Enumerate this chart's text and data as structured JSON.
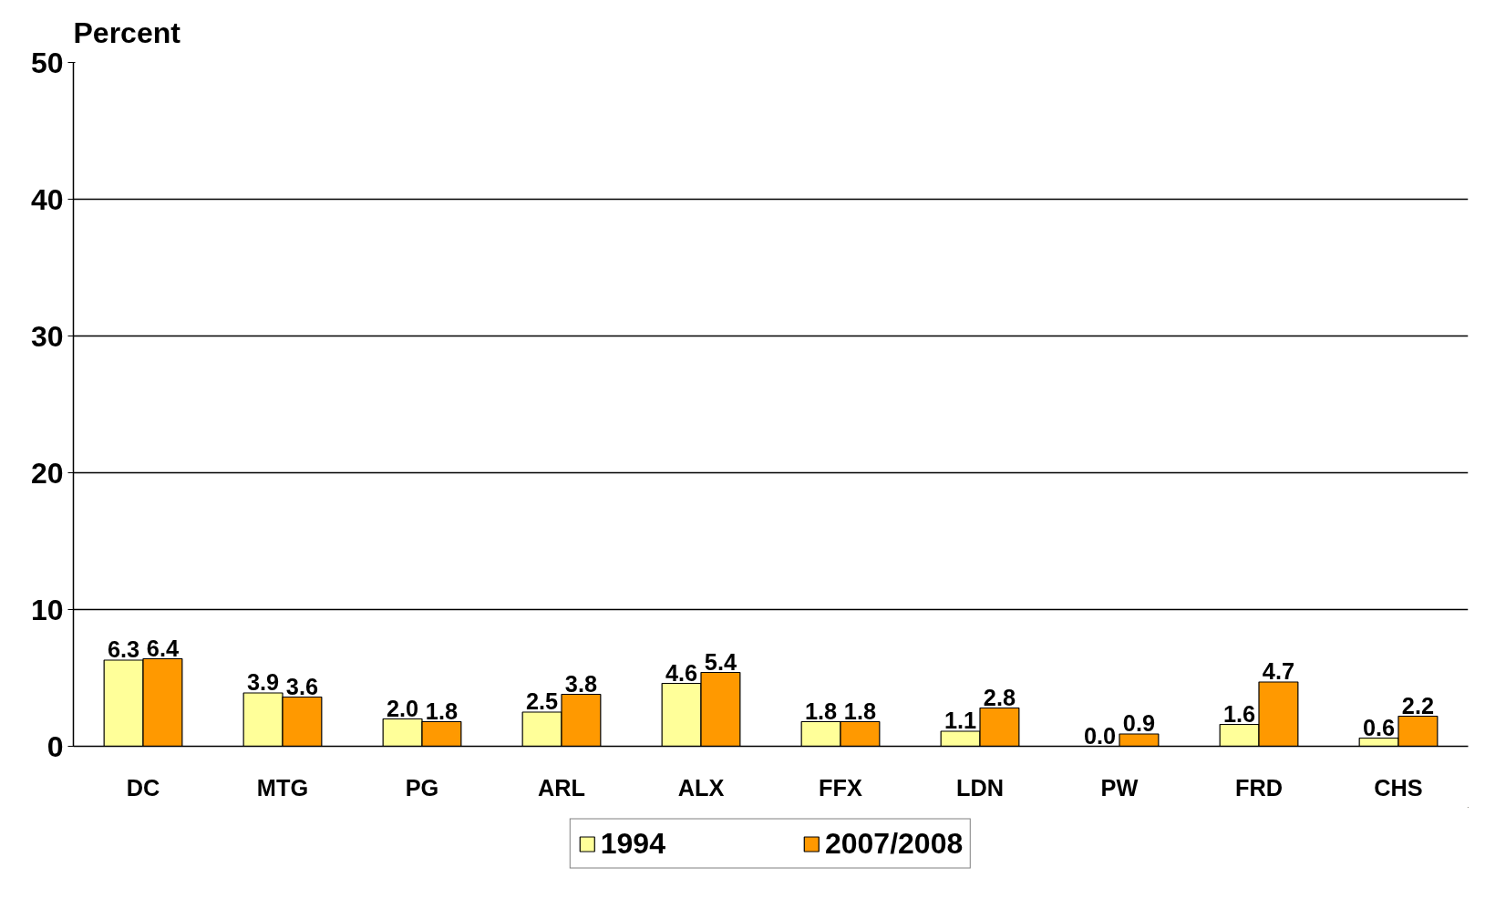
{
  "chart_data": {
    "type": "bar",
    "ylabel": "Percent",
    "categories": [
      "DC",
      "MTG",
      "PG",
      "ARL",
      "ALX",
      "FFX",
      "LDN",
      "PW",
      "FRD",
      "CHS"
    ],
    "series": [
      {
        "name": "1994",
        "color": "#ffff99",
        "values": [
          6.3,
          3.9,
          2.0,
          2.5,
          4.6,
          1.8,
          1.1,
          0.0,
          1.6,
          0.6
        ],
        "value_labels": [
          "6.3",
          "3.9",
          "2.0",
          "2.5",
          "4.6",
          "1.8",
          "1.1",
          "0.0",
          "1.6",
          "0.6"
        ]
      },
      {
        "name": "2007/2008",
        "color": "#ff9900",
        "values": [
          6.4,
          3.6,
          1.8,
          3.8,
          5.4,
          1.8,
          2.8,
          0.9,
          4.7,
          2.2
        ],
        "value_labels": [
          "6.4",
          "3.6",
          "1.8",
          "3.8",
          "5.4",
          "1.8",
          "2.8",
          "0.9",
          "4.7",
          "2.2"
        ]
      }
    ],
    "ylim": [
      0,
      50
    ],
    "yticks": [
      0,
      10,
      20,
      30,
      40,
      50
    ],
    "grid": "y",
    "legend": "bottom"
  }
}
